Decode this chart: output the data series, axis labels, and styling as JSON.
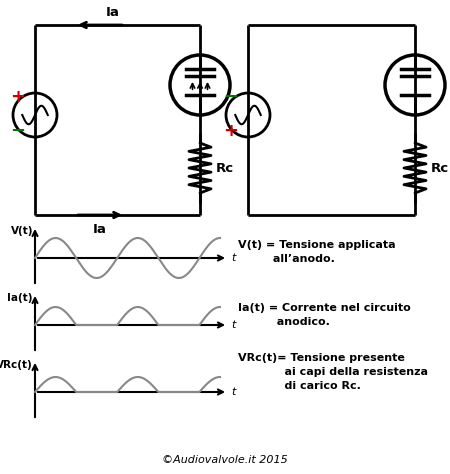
{
  "bg_color": "#ffffff",
  "lc": "#000000",
  "lw": 2.0,
  "plus_color": "#cc0000",
  "minus_color": "#007700",
  "signal_color": "#888888",
  "signal_lw": 1.5,
  "footer": "©Audiovalvole.it 2015",
  "legend": [
    [
      "V(t) = Tensione applicata",
      "all’anodo."
    ],
    [
      "Ia(t) = Corrente nel circuito",
      "anodico."
    ],
    [
      "VRc(t)= Tensione presente",
      "   ai capi della resistenza",
      "   di carico Rc."
    ]
  ]
}
